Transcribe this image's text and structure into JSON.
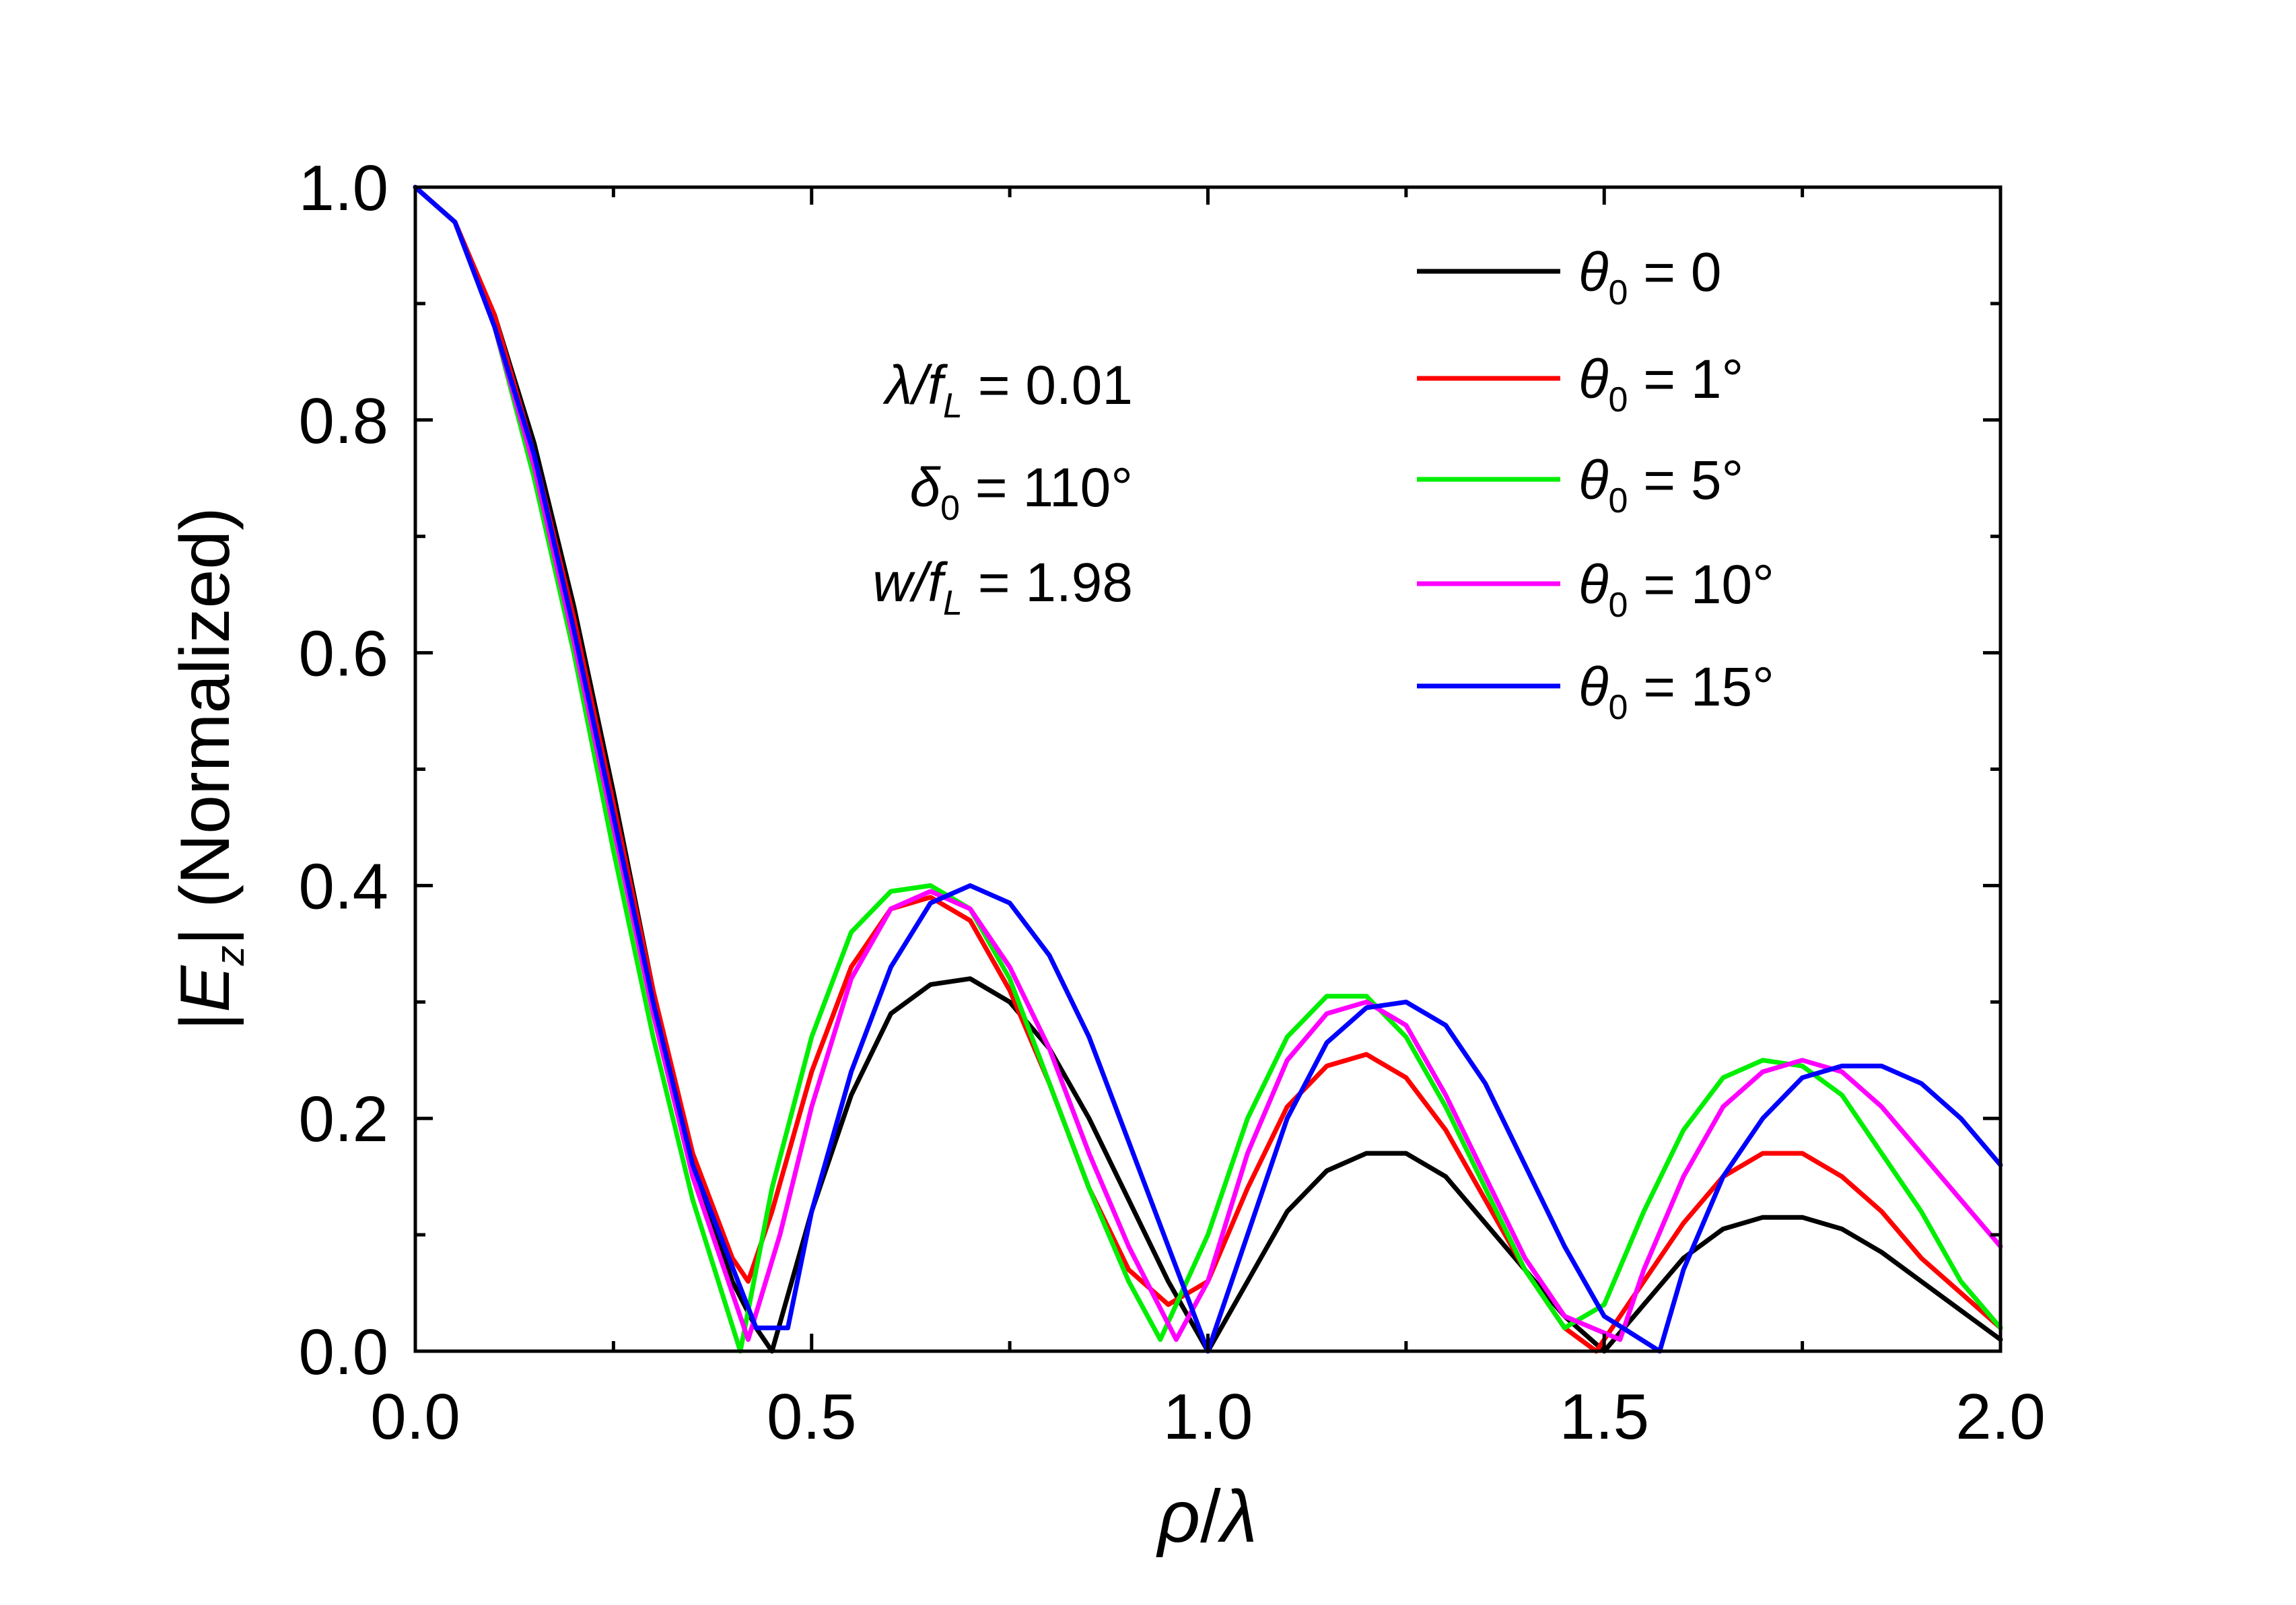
{
  "chart_data": {
    "type": "line",
    "title": "",
    "xlabel": {
      "var": "ρ",
      "sep": "/",
      "den": "λ"
    },
    "ylabel": {
      "open": "|",
      "var": "E",
      "sub": "z",
      "close": "| (Normalized)"
    },
    "xlim": [
      0,
      2
    ],
    "ylim": [
      0,
      1
    ],
    "xticks": [
      0,
      0.5,
      1,
      1.5,
      2
    ],
    "xtick_labels": [
      "0.0",
      "0.5",
      "1.0",
      "1.5",
      "2.0"
    ],
    "yticks": [
      0,
      0.2,
      0.4,
      0.6,
      0.8,
      1
    ],
    "ytick_labels": [
      "0.0",
      "0.2",
      "0.4",
      "0.6",
      "0.8",
      "1.0"
    ],
    "grid": false,
    "legend_position": "top-right",
    "annotations": [
      {
        "var": "λ/f",
        "sub": "L",
        "text": " = 0.01"
      },
      {
        "var": "δ",
        "sub": "0",
        "text": " = 110°"
      },
      {
        "var": "w/f",
        "sub": "L",
        "text": " = 1.98"
      }
    ],
    "series": [
      {
        "name": "θ0 = 0",
        "legend_var": "θ",
        "legend_sub": "0",
        "legend_text": " = 0",
        "color": "#000000",
        "x": [
          0,
          0.05,
          0.1,
          0.15,
          0.2,
          0.25,
          0.3,
          0.35,
          0.4,
          0.43,
          0.45,
          0.5,
          0.55,
          0.6,
          0.65,
          0.7,
          0.75,
          0.8,
          0.85,
          0.9,
          0.95,
          1.0,
          1.05,
          1.1,
          1.15,
          1.2,
          1.25,
          1.3,
          1.35,
          1.4,
          1.45,
          1.5,
          1.55,
          1.6,
          1.65,
          1.7,
          1.75,
          1.8,
          1.85,
          1.9,
          1.95,
          2.0
        ],
        "y": [
          1.0,
          0.97,
          0.89,
          0.78,
          0.64,
          0.48,
          0.31,
          0.16,
          0.06,
          0.02,
          0.0,
          0.12,
          0.22,
          0.29,
          0.315,
          0.32,
          0.3,
          0.26,
          0.2,
          0.13,
          0.06,
          0.0,
          0.06,
          0.12,
          0.155,
          0.17,
          0.17,
          0.15,
          0.11,
          0.07,
          0.03,
          0.0,
          0.04,
          0.08,
          0.105,
          0.115,
          0.115,
          0.105,
          0.085,
          0.06,
          0.035,
          0.01
        ]
      },
      {
        "name": "θ0 = 1°",
        "legend_var": "θ",
        "legend_sub": "0",
        "legend_text": " = 1°",
        "color": "#ff0000",
        "x": [
          0,
          0.05,
          0.1,
          0.15,
          0.2,
          0.25,
          0.3,
          0.35,
          0.4,
          0.42,
          0.45,
          0.5,
          0.55,
          0.6,
          0.65,
          0.7,
          0.75,
          0.8,
          0.85,
          0.9,
          0.95,
          1.0,
          1.05,
          1.1,
          1.15,
          1.2,
          1.25,
          1.3,
          1.35,
          1.4,
          1.45,
          1.49,
          1.55,
          1.6,
          1.65,
          1.7,
          1.75,
          1.8,
          1.85,
          1.9,
          1.95,
          2.0
        ],
        "y": [
          1.0,
          0.97,
          0.89,
          0.77,
          0.63,
          0.47,
          0.31,
          0.17,
          0.08,
          0.06,
          0.12,
          0.24,
          0.33,
          0.38,
          0.39,
          0.37,
          0.31,
          0.23,
          0.14,
          0.07,
          0.04,
          0.06,
          0.14,
          0.21,
          0.245,
          0.255,
          0.235,
          0.19,
          0.13,
          0.07,
          0.02,
          0.0,
          0.06,
          0.11,
          0.15,
          0.17,
          0.17,
          0.15,
          0.12,
          0.08,
          0.05,
          0.02
        ]
      },
      {
        "name": "θ0 = 5°",
        "legend_var": "θ",
        "legend_sub": "0",
        "legend_text": " = 5°",
        "color": "#00ee00",
        "x": [
          0,
          0.05,
          0.1,
          0.15,
          0.2,
          0.25,
          0.3,
          0.35,
          0.41,
          0.45,
          0.5,
          0.55,
          0.6,
          0.65,
          0.7,
          0.75,
          0.8,
          0.85,
          0.9,
          0.94,
          1.0,
          1.05,
          1.1,
          1.15,
          1.2,
          1.25,
          1.3,
          1.35,
          1.4,
          1.45,
          1.5,
          1.55,
          1.6,
          1.65,
          1.7,
          1.75,
          1.8,
          1.85,
          1.9,
          1.95,
          2.0
        ],
        "y": [
          1.0,
          0.97,
          0.88,
          0.75,
          0.6,
          0.43,
          0.27,
          0.13,
          0.0,
          0.14,
          0.27,
          0.36,
          0.395,
          0.4,
          0.38,
          0.32,
          0.23,
          0.14,
          0.06,
          0.01,
          0.1,
          0.2,
          0.27,
          0.305,
          0.305,
          0.27,
          0.21,
          0.14,
          0.07,
          0.02,
          0.04,
          0.12,
          0.19,
          0.235,
          0.25,
          0.245,
          0.22,
          0.17,
          0.12,
          0.06,
          0.02
        ]
      },
      {
        "name": "θ0 = 10°",
        "legend_var": "θ",
        "legend_sub": "0",
        "legend_text": " = 10°",
        "color": "#ff00ff",
        "x": [
          0,
          0.05,
          0.1,
          0.15,
          0.2,
          0.25,
          0.3,
          0.35,
          0.42,
          0.46,
          0.5,
          0.55,
          0.6,
          0.65,
          0.7,
          0.75,
          0.8,
          0.85,
          0.9,
          0.96,
          1.0,
          1.05,
          1.1,
          1.15,
          1.2,
          1.25,
          1.3,
          1.35,
          1.4,
          1.45,
          1.52,
          1.55,
          1.6,
          1.65,
          1.7,
          1.75,
          1.8,
          1.85,
          1.9,
          1.95,
          2.0
        ],
        "y": [
          1.0,
          0.97,
          0.88,
          0.76,
          0.61,
          0.45,
          0.29,
          0.15,
          0.01,
          0.1,
          0.21,
          0.32,
          0.38,
          0.395,
          0.38,
          0.33,
          0.26,
          0.17,
          0.09,
          0.01,
          0.06,
          0.17,
          0.25,
          0.29,
          0.3,
          0.28,
          0.22,
          0.15,
          0.08,
          0.03,
          0.01,
          0.07,
          0.15,
          0.21,
          0.24,
          0.25,
          0.24,
          0.21,
          0.17,
          0.13,
          0.09
        ]
      },
      {
        "name": "θ0 = 15°",
        "legend_var": "θ",
        "legend_sub": "0",
        "legend_text": " = 15°",
        "color": "#0000ff",
        "x": [
          0,
          0.05,
          0.1,
          0.15,
          0.2,
          0.25,
          0.3,
          0.35,
          0.43,
          0.47,
          0.5,
          0.55,
          0.6,
          0.65,
          0.7,
          0.75,
          0.8,
          0.85,
          0.9,
          0.95,
          1.0,
          1.05,
          1.1,
          1.15,
          1.2,
          1.25,
          1.3,
          1.35,
          1.4,
          1.45,
          1.5,
          1.57,
          1.6,
          1.65,
          1.7,
          1.75,
          1.8,
          1.85,
          1.9,
          1.95,
          2.0
        ],
        "y": [
          1.0,
          0.97,
          0.88,
          0.77,
          0.62,
          0.46,
          0.3,
          0.16,
          0.02,
          0.02,
          0.12,
          0.24,
          0.33,
          0.385,
          0.4,
          0.385,
          0.34,
          0.27,
          0.18,
          0.09,
          0.0,
          0.1,
          0.2,
          0.265,
          0.295,
          0.3,
          0.28,
          0.23,
          0.16,
          0.09,
          0.03,
          0.0,
          0.07,
          0.15,
          0.2,
          0.235,
          0.245,
          0.245,
          0.23,
          0.2,
          0.16
        ]
      }
    ]
  }
}
